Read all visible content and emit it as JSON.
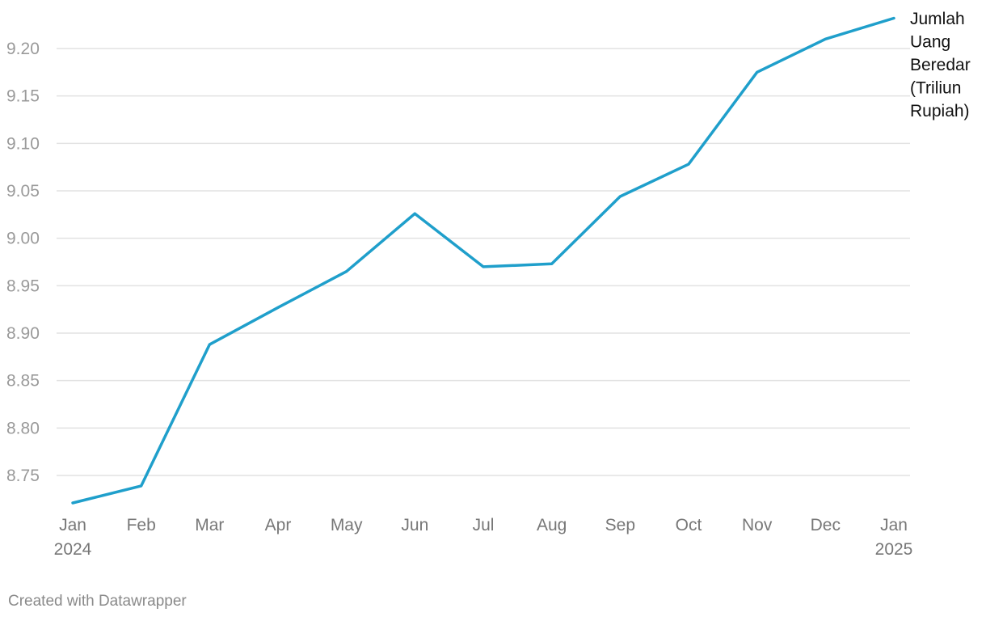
{
  "chart_data": {
    "type": "line",
    "title": "",
    "xlabel": "",
    "ylabel": "",
    "x": [
      "Jan 2024",
      "Feb 2024",
      "Mar 2024",
      "Apr 2024",
      "May 2024",
      "Jun 2024",
      "Jul 2024",
      "Aug 2024",
      "Sep 2024",
      "Oct 2024",
      "Nov 2024",
      "Dec 2024",
      "Jan 2025"
    ],
    "x_tick_labels": [
      {
        "month": "Jan",
        "year": "2024"
      },
      {
        "month": "Feb",
        "year": ""
      },
      {
        "month": "Mar",
        "year": ""
      },
      {
        "month": "Apr",
        "year": ""
      },
      {
        "month": "May",
        "year": ""
      },
      {
        "month": "Jun",
        "year": ""
      },
      {
        "month": "Jul",
        "year": ""
      },
      {
        "month": "Aug",
        "year": ""
      },
      {
        "month": "Sep",
        "year": ""
      },
      {
        "month": "Oct",
        "year": ""
      },
      {
        "month": "Nov",
        "year": ""
      },
      {
        "month": "Dec",
        "year": ""
      },
      {
        "month": "Jan",
        "year": "2025"
      }
    ],
    "y_ticks": [
      "8.75",
      "8.80",
      "8.85",
      "8.90",
      "8.95",
      "9.00",
      "9.05",
      "9.10",
      "9.15",
      "9.20"
    ],
    "ylim": [
      8.72,
      9.23
    ],
    "grid": true,
    "series": [
      {
        "name": "Jumlah Uang Beredar (Triliun Rupiah)",
        "label_lines": [
          "Jumlah",
          "Uang",
          "Beredar",
          "(Triliun",
          "Rupiah)"
        ],
        "color": "#1f9fcb",
        "values": [
          8.721,
          8.739,
          8.888,
          8.927,
          8.965,
          9.026,
          8.97,
          8.973,
          9.044,
          9.078,
          9.175,
          9.21,
          9.232
        ]
      }
    ]
  },
  "footer": {
    "credit": "Created with Datawrapper"
  }
}
